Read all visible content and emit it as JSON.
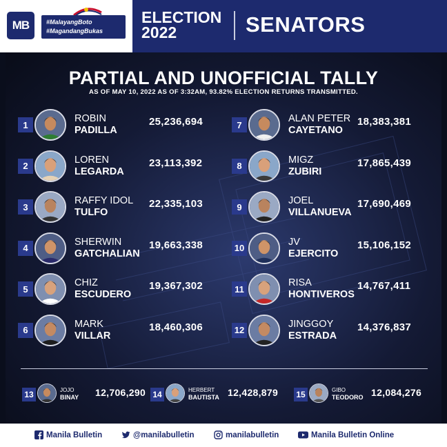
{
  "header": {
    "logo": "MB",
    "tagline_1": "#MalayangBoto",
    "tagline_2": "#MagandangBukas",
    "election_line_1": "ELECTION",
    "election_line_2": "2022",
    "category": "SENATORS"
  },
  "tally": {
    "title": "PARTIAL AND UNOFFICIAL TALLY",
    "subtitle": "AS OF MAY 10, 2022 AS OF 3:32AM, 93.82% ELECTION RETURNS TRANSMITTED."
  },
  "candidates": [
    {
      "rank": "1",
      "first": "ROBIN",
      "last": "PADILLA",
      "votes": "25,236,694"
    },
    {
      "rank": "2",
      "first": "LOREN",
      "last": "LEGARDA",
      "votes": "23,113,392"
    },
    {
      "rank": "3",
      "first": "RAFFY IDOL",
      "last": "TULFO",
      "votes": "22,335,103"
    },
    {
      "rank": "4",
      "first": "SHERWIN",
      "last": "GATCHALIAN",
      "votes": "19,663,338"
    },
    {
      "rank": "5",
      "first": "CHIZ",
      "last": "ESCUDERO",
      "votes": "19,367,302"
    },
    {
      "rank": "6",
      "first": "MARK",
      "last": "VILLAR",
      "votes": "18,460,306"
    },
    {
      "rank": "7",
      "first": "ALAN PETER",
      "last": "CAYETANO",
      "votes": "18,383,381"
    },
    {
      "rank": "8",
      "first": "MIGZ",
      "last": "ZUBIRI",
      "votes": "17,865,439"
    },
    {
      "rank": "9",
      "first": "JOEL",
      "last": "VILLANUEVA",
      "votes": "17,690,469"
    },
    {
      "rank": "10",
      "first": "JV",
      "last": "EJERCITO",
      "votes": "15,106,152"
    },
    {
      "rank": "11",
      "first": "RISA",
      "last": "HONTIVEROS",
      "votes": "14,767,411"
    },
    {
      "rank": "12",
      "first": "JINGGOY",
      "last": "ESTRADA",
      "votes": "14,376,837"
    }
  ],
  "others": [
    {
      "rank": "13",
      "first": "JOJO",
      "last": "BINAY",
      "votes": "12,706,290"
    },
    {
      "rank": "14",
      "first": "HERBERT",
      "last": "BAUTISTA",
      "votes": "12,428,879"
    },
    {
      "rank": "15",
      "first": "GIBO",
      "last": "TEODORO",
      "votes": "12,084,276"
    }
  ],
  "footer": {
    "facebook": "Manila Bulletin",
    "twitter": "@manilabulletin",
    "instagram": "manilabulletin",
    "youtube": "Manila Bulletin Online"
  },
  "colors": {
    "brand_navy": "#1d2a6e",
    "rank_box": "#2a3a8c"
  }
}
